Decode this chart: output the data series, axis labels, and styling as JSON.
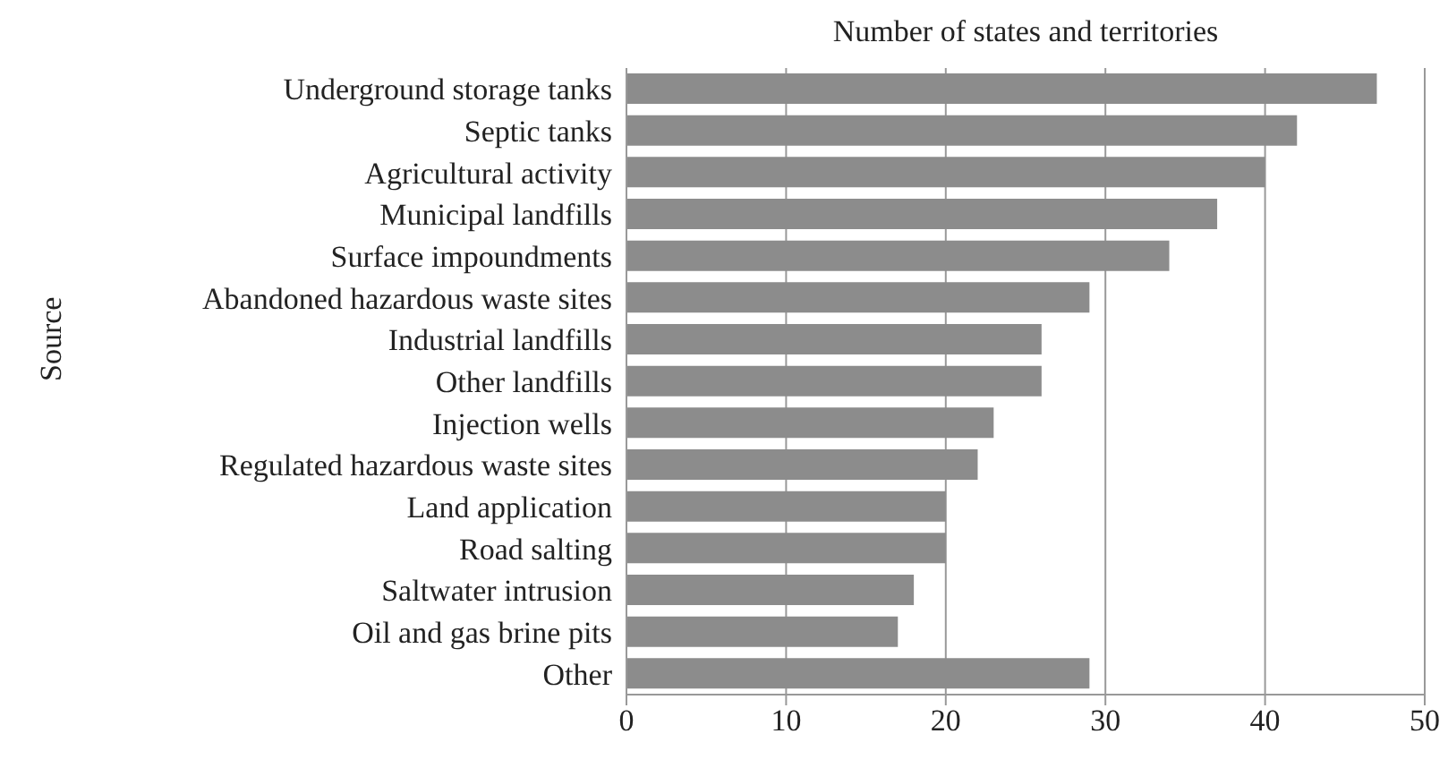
{
  "chart_data": {
    "type": "bar",
    "orientation": "horizontal",
    "xlabel": "Number of states and territories",
    "ylabel": "Source",
    "categories": [
      "Underground storage tanks",
      "Septic tanks",
      "Agricultural activity",
      "Municipal landfills",
      "Surface impoundments",
      "Abandoned hazardous waste sites",
      "Industrial landfills",
      "Other landfills",
      "Injection wells",
      "Regulated hazardous waste sites",
      "Land application",
      "Road salting",
      "Saltwater intrusion",
      "Oil and gas brine pits",
      "Other"
    ],
    "values": [
      47,
      42,
      40,
      37,
      34,
      29,
      26,
      26,
      23,
      22,
      20,
      20,
      18,
      17,
      29
    ],
    "color": "#8c8c8c",
    "xlim": [
      0,
      50
    ],
    "xticks": [
      0,
      10,
      20,
      30,
      40,
      50
    ],
    "grid": "x"
  }
}
